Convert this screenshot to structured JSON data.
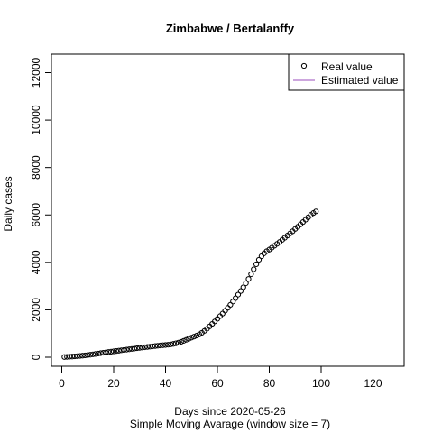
{
  "chart_data": {
    "type": "scatter",
    "title": "Zimbabwe / Bertalanffy",
    "xlabel": "Days since 2020-05-26",
    "xsublabel": "Simple Moving Avarage (window size = 7)",
    "ylabel": "Daily cases",
    "xlim": [
      -4,
      132
    ],
    "ylim": [
      -380,
      12780
    ],
    "xticks": [
      0,
      20,
      40,
      60,
      80,
      100,
      120
    ],
    "yticks": [
      0,
      2000,
      4000,
      6000,
      8000,
      10000,
      12000
    ],
    "grid": false,
    "legend_position": "top-right",
    "legend": [
      {
        "label": "Real value",
        "marker": "open-circle",
        "color": "#000000"
      },
      {
        "label": "Estimated value",
        "marker": "line",
        "color": "#9b4dbe"
      }
    ],
    "series": [
      {
        "name": "Real value",
        "marker": "open-circle",
        "color": "#000000",
        "points": [
          [
            1,
            10
          ],
          [
            2,
            16
          ],
          [
            3,
            22
          ],
          [
            4,
            28
          ],
          [
            5,
            36
          ],
          [
            6,
            45
          ],
          [
            7,
            55
          ],
          [
            8,
            66
          ],
          [
            9,
            78
          ],
          [
            10,
            92
          ],
          [
            11,
            106
          ],
          [
            12,
            122
          ],
          [
            13,
            138
          ],
          [
            14,
            155
          ],
          [
            15,
            172
          ],
          [
            16,
            188
          ],
          [
            17,
            202
          ],
          [
            18,
            218
          ],
          [
            19,
            232
          ],
          [
            20,
            248
          ],
          [
            21,
            262
          ],
          [
            22,
            276
          ],
          [
            23,
            292
          ],
          [
            24,
            306
          ],
          [
            25,
            320
          ],
          [
            26,
            334
          ],
          [
            27,
            350
          ],
          [
            28,
            364
          ],
          [
            29,
            378
          ],
          [
            30,
            392
          ],
          [
            31,
            406
          ],
          [
            32,
            420
          ],
          [
            33,
            432
          ],
          [
            34,
            445
          ],
          [
            35,
            458
          ],
          [
            36,
            470
          ],
          [
            37,
            482
          ],
          [
            38,
            494
          ],
          [
            39,
            505
          ],
          [
            40,
            515
          ],
          [
            41,
            526
          ],
          [
            42,
            540
          ],
          [
            43,
            560
          ],
          [
            44,
            585
          ],
          [
            45,
            615
          ],
          [
            46,
            650
          ],
          [
            47,
            690
          ],
          [
            48,
            735
          ],
          [
            49,
            780
          ],
          [
            50,
            825
          ],
          [
            51,
            868
          ],
          [
            52,
            910
          ],
          [
            53,
            960
          ],
          [
            54,
            1030
          ],
          [
            55,
            1110
          ],
          [
            56,
            1200
          ],
          [
            57,
            1300
          ],
          [
            58,
            1405
          ],
          [
            59,
            1510
          ],
          [
            60,
            1620
          ],
          [
            61,
            1730
          ],
          [
            62,
            1840
          ],
          [
            63,
            1960
          ],
          [
            64,
            2080
          ],
          [
            65,
            2210
          ],
          [
            66,
            2350
          ],
          [
            67,
            2490
          ],
          [
            68,
            2640
          ],
          [
            69,
            2790
          ],
          [
            70,
            2950
          ],
          [
            71,
            3120
          ],
          [
            72,
            3300
          ],
          [
            73,
            3500
          ],
          [
            74,
            3710
          ],
          [
            75,
            3920
          ],
          [
            76,
            4110
          ],
          [
            77,
            4260
          ],
          [
            78,
            4380
          ],
          [
            79,
            4470
          ],
          [
            80,
            4540
          ],
          [
            81,
            4620
          ],
          [
            82,
            4700
          ],
          [
            83,
            4780
          ],
          [
            84,
            4860
          ],
          [
            85,
            4950
          ],
          [
            86,
            5040
          ],
          [
            87,
            5130
          ],
          [
            88,
            5220
          ],
          [
            89,
            5310
          ],
          [
            90,
            5410
          ],
          [
            91,
            5500
          ],
          [
            92,
            5600
          ],
          [
            93,
            5700
          ],
          [
            94,
            5800
          ],
          [
            95,
            5900
          ],
          [
            96,
            6000
          ],
          [
            97,
            6080
          ],
          [
            98,
            6150
          ]
        ]
      }
    ],
    "colors": {
      "background": "#ffffff",
      "axis": "#000000",
      "estimated_line": "#9b4dbe"
    }
  }
}
